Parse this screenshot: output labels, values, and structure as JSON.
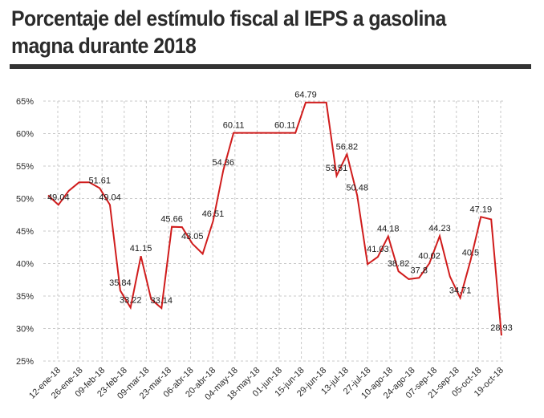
{
  "title": "Porcentaje del estímulo fiscal al IEPS a gasolina magna durante 2018",
  "colors": {
    "line": "#d01c1c",
    "rule": "#333333",
    "grid": "#c8c8c8",
    "text": "#2b2b2b"
  },
  "chart_data": {
    "type": "line",
    "title": "Porcentaje del estímulo fiscal al IEPS a gasolina magna durante 2018",
    "xlabel": "",
    "ylabel": "",
    "ylim": [
      25,
      65
    ],
    "yticks": [
      "25%",
      "30%",
      "35%",
      "40%",
      "45%",
      "50%",
      "55%",
      "60%",
      "65%"
    ],
    "grid": "dashed",
    "legend": "none",
    "xticks": [
      "12-ene-18",
      "26-ene-18",
      "09-feb-18",
      "23-feb-18",
      "09-mar-18",
      "23-mar-18",
      "06-abr-18",
      "20-abr-18",
      "04-may-18",
      "18-may-18",
      "01-jun-18",
      "15-jun-18",
      "29-jun-18",
      "13-jul-18",
      "27-jul-18",
      "10-ago-18",
      "24-ago-18",
      "07-sep-18",
      "21-sep-18",
      "05-oct-18",
      "19-oct-18"
    ],
    "series": [
      {
        "values": [
          50.5,
          49.04,
          51.2,
          52.5,
          52.5,
          51.61,
          49.04,
          35.84,
          33.22,
          41.15,
          34.5,
          33.14,
          45.66,
          45.6,
          43.05,
          41.5,
          46.51,
          54.36,
          60.11,
          60.11,
          60.11,
          60.11,
          60.11,
          60.11,
          60.11,
          64.79,
          64.79,
          64.79,
          53.51,
          56.82,
          50.48,
          39.9,
          41.03,
          44.18,
          38.82,
          37.6,
          37.8,
          40.02,
          44.23,
          38.0,
          34.71,
          40.5,
          47.19,
          46.8,
          28.93
        ],
        "labels": {
          "1": "49.04",
          "5": "51.61",
          "6": "49.04",
          "7": "35.84",
          "8": "33.22",
          "9": "41.15",
          "11": "33.14",
          "12": "45.66",
          "14": "43.05",
          "16": "46.51",
          "17": "54.36",
          "18": "60.11",
          "23": "60.11",
          "25": "64.79",
          "28": "53.51",
          "29": "56.82",
          "30": "50.48",
          "32": "41.03",
          "33": "44.18",
          "34": "38.82",
          "36": "37.8",
          "37": "40.02",
          "38": "44.23",
          "40": "34.71",
          "41": "40.5",
          "42": "47.19",
          "44": "28.93"
        }
      }
    ]
  }
}
